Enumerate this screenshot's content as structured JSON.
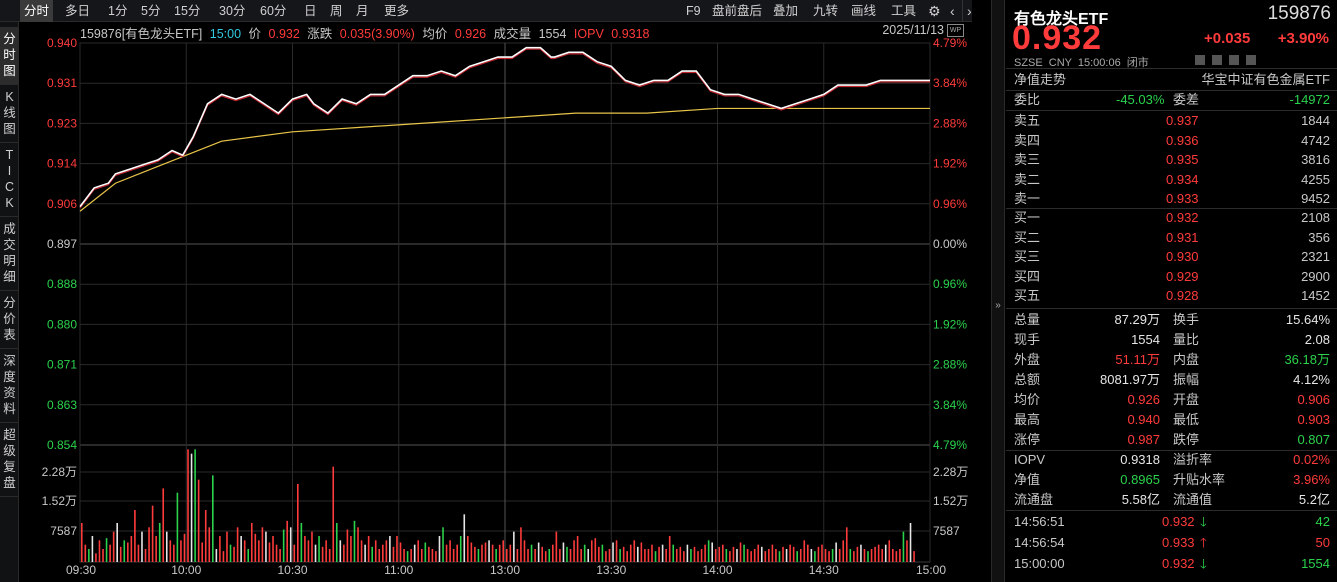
{
  "toolbar": {
    "periods": [
      "分时",
      "多日",
      "1分",
      "5分",
      "15分",
      "30分",
      "60分",
      "日",
      "周",
      "月",
      "更多"
    ],
    "right": [
      "F9",
      "盘前盘后",
      "叠加",
      "九转",
      "画线",
      "工具"
    ],
    "gear": "gear-icon",
    "nav_prev": "‹",
    "nav_next": "›"
  },
  "sidetabs": [
    "分时图",
    "K线图",
    "TICK",
    "成交明细",
    "分价表",
    "深度资料",
    "超级复盘"
  ],
  "info": {
    "code_name": "159876[有色龙头ETF]",
    "time": "15:00",
    "price_label": "价",
    "price": "0.932",
    "change_label": "涨跌",
    "change": "0.035(3.90%)",
    "avg_label": "均价",
    "avg": "0.926",
    "vol_label": "成交量",
    "vol": "1554",
    "iopv_label": "IOPV",
    "iopv": "0.9318",
    "date": "2025/11/13"
  },
  "axes": {
    "price_ticks": [
      "0.940",
      "0.931",
      "0.923",
      "0.914",
      "0.906",
      "0.897",
      "0.888",
      "0.880",
      "0.871",
      "0.863",
      "0.854"
    ],
    "pct_ticks": [
      "4.79%",
      "3.84%",
      "2.88%",
      "1.92%",
      "0.96%",
      "0.00%",
      "0.96%",
      "1.92%",
      "2.88%",
      "3.84%",
      "4.79%"
    ],
    "vol_ticks": [
      "2.28万",
      "1.52万",
      "7587"
    ],
    "vol_ticks_right": [
      "2.28万",
      "1.52万",
      "7587"
    ],
    "time_ticks": [
      "09:30",
      "10:00",
      "10:30",
      "11:00",
      "13:00",
      "13:30",
      "14:00",
      "14:30",
      "15:00"
    ]
  },
  "chart_data": {
    "type": "line",
    "title": "159876[有色龙头ETF]",
    "preclose": 0.897,
    "ylim": [
      0.854,
      0.94
    ],
    "series": [
      {
        "name": "价",
        "points": [
          [
            0,
            0.905
          ],
          [
            4,
            0.909
          ],
          [
            8,
            0.91
          ],
          [
            10,
            0.912
          ],
          [
            14,
            0.913
          ],
          [
            18,
            0.914
          ],
          [
            22,
            0.915
          ],
          [
            26,
            0.917
          ],
          [
            29,
            0.916
          ],
          [
            32,
            0.92
          ],
          [
            36,
            0.927
          ],
          [
            40,
            0.929
          ],
          [
            44,
            0.928
          ],
          [
            48,
            0.929
          ],
          [
            52,
            0.927
          ],
          [
            56,
            0.925
          ],
          [
            60,
            0.928
          ],
          [
            64,
            0.929
          ],
          [
            66,
            0.927
          ],
          [
            70,
            0.925
          ],
          [
            74,
            0.928
          ],
          [
            78,
            0.927
          ],
          [
            82,
            0.929
          ],
          [
            86,
            0.929
          ],
          [
            90,
            0.931
          ],
          [
            94,
            0.933
          ],
          [
            98,
            0.933
          ],
          [
            102,
            0.934
          ],
          [
            106,
            0.933
          ],
          [
            110,
            0.935
          ],
          [
            114,
            0.936
          ],
          [
            118,
            0.937
          ],
          [
            122,
            0.937
          ],
          [
            126,
            0.939
          ],
          [
            130,
            0.939
          ],
          [
            133,
            0.937
          ],
          [
            134,
            0.937
          ],
          [
            138,
            0.938
          ],
          [
            142,
            0.938
          ],
          [
            146,
            0.936
          ],
          [
            150,
            0.935
          ],
          [
            154,
            0.932
          ],
          [
            158,
            0.931
          ],
          [
            162,
            0.932
          ],
          [
            166,
            0.932
          ],
          [
            170,
            0.934
          ],
          [
            174,
            0.934
          ],
          [
            178,
            0.93
          ],
          [
            182,
            0.929
          ],
          [
            186,
            0.929
          ],
          [
            190,
            0.928
          ],
          [
            194,
            0.927
          ],
          [
            198,
            0.926
          ],
          [
            202,
            0.927
          ],
          [
            206,
            0.928
          ],
          [
            210,
            0.929
          ],
          [
            214,
            0.931
          ],
          [
            218,
            0.931
          ],
          [
            222,
            0.931
          ],
          [
            226,
            0.932
          ],
          [
            230,
            0.932
          ],
          [
            234,
            0.932
          ],
          [
            238,
            0.932
          ],
          [
            240,
            0.932
          ]
        ]
      },
      {
        "name": "均价",
        "points": [
          [
            0,
            0.904
          ],
          [
            10,
            0.91
          ],
          [
            20,
            0.913
          ],
          [
            30,
            0.916
          ],
          [
            40,
            0.919
          ],
          [
            60,
            0.921
          ],
          [
            80,
            0.922
          ],
          [
            100,
            0.923
          ],
          [
            120,
            0.924
          ],
          [
            140,
            0.925
          ],
          [
            160,
            0.925
          ],
          [
            180,
            0.926
          ],
          [
            200,
            0.926
          ],
          [
            220,
            0.926
          ],
          [
            240,
            0.926
          ]
        ]
      }
    ],
    "volume": [
      9000,
      4000,
      3000,
      6000,
      2000,
      5000,
      3000,
      5500,
      4000,
      7000,
      9000,
      3500,
      5000,
      4500,
      6000,
      12000,
      4000,
      7000,
      3000,
      8000,
      13000,
      6000,
      9000,
      17000,
      7000,
      5000,
      4000,
      16000,
      5000,
      6500,
      26000,
      25000,
      26000,
      19000,
      4500,
      12000,
      8000,
      20000,
      3000,
      6000,
      2500,
      7000,
      4000,
      3500,
      8000,
      6000,
      5000,
      3000,
      9000,
      6500,
      5000,
      8000,
      7000,
      4500,
      6000,
      4000,
      3000,
      7500,
      9500,
      8000,
      4000,
      18000,
      9000,
      6000,
      5000,
      7000,
      4000,
      6000,
      3500,
      5000,
      3000,
      22000,
      9000,
      5000,
      4000,
      7500,
      6000,
      9500,
      8000,
      5000,
      4000,
      6000,
      3500,
      5000,
      3000,
      4000,
      5000,
      6000,
      3500,
      6000,
      4500,
      3000,
      2500,
      3000,
      4000,
      5000,
      3000,
      4500,
      3500,
      3000,
      2500,
      6000,
      8000,
      4000,
      5000,
      3000,
      4000,
      6000,
      11000,
      6000,
      4500,
      3500,
      3000,
      4000,
      4500,
      5000,
      4000,
      3000,
      4000,
      5000,
      3000,
      4000,
      7000,
      3000,
      8000,
      5000,
      3000,
      4000,
      3000,
      4500,
      3500,
      2500,
      3000,
      4000,
      7000,
      3000,
      4500,
      3500,
      3000,
      5000,
      6000,
      3000,
      4000,
      3000,
      5000,
      5500,
      3500,
      4000,
      2500,
      3000,
      4500,
      5000,
      3000,
      3500,
      2500,
      4000,
      5000,
      3500,
      4500,
      3000,
      3000,
      4000,
      2500,
      3500,
      4000,
      3000,
      6000,
      4000,
      3000,
      3500,
      2500,
      4000,
      3000,
      3500,
      2500,
      3000,
      4000,
      5000,
      4500,
      3000,
      3500,
      4000,
      3000,
      2500,
      3500,
      3000,
      4500,
      4000,
      3000,
      2500,
      3000,
      4000,
      3500,
      2500,
      3000,
      4000,
      3000,
      2500,
      3500,
      3000,
      4000,
      3500,
      2500,
      3000,
      5000,
      4000,
      3000,
      2500,
      3500,
      4000,
      3000,
      2500,
      3000,
      4500,
      3000,
      5000,
      8000,
      3000,
      2500,
      3500,
      4000,
      3000,
      2500,
      3000,
      3500,
      4000,
      3000,
      4000,
      5000,
      3000,
      2500,
      3000,
      7000,
      5000,
      9000,
      2500
    ]
  },
  "panel": {
    "name": "有色龙头ETF",
    "code": "159876",
    "price": "0.932",
    "change": "+0.035",
    "pct": "+3.90%",
    "meta": [
      "SZSE",
      "CNY",
      "15:00:06",
      "闭市"
    ],
    "nav_label": "净值走势",
    "index_name": "华宝中证有色金属ETF",
    "weibi_label": "委比",
    "weibi": "-45.03%",
    "weicha_label": "委差",
    "weicha": "-14972",
    "asks": [
      {
        "label": "卖五",
        "price": "0.937",
        "vol": "1844"
      },
      {
        "label": "卖四",
        "price": "0.936",
        "vol": "4742"
      },
      {
        "label": "卖三",
        "price": "0.935",
        "vol": "3816"
      },
      {
        "label": "卖二",
        "price": "0.934",
        "vol": "4255"
      },
      {
        "label": "卖一",
        "price": "0.933",
        "vol": "9452"
      }
    ],
    "bids": [
      {
        "label": "买一",
        "price": "0.932",
        "vol": "2108"
      },
      {
        "label": "买二",
        "price": "0.931",
        "vol": "356"
      },
      {
        "label": "买三",
        "price": "0.930",
        "vol": "2321"
      },
      {
        "label": "买四",
        "price": "0.929",
        "vol": "2900"
      },
      {
        "label": "买五",
        "price": "0.928",
        "vol": "1452"
      }
    ],
    "stats": [
      {
        "l1": "总量",
        "v1": "87.29万",
        "c1": "white",
        "l2": "换手",
        "v2": "15.64%",
        "c2": "white"
      },
      {
        "l1": "现手",
        "v1": "1554",
        "c1": "white",
        "l2": "量比",
        "v2": "2.08",
        "c2": "white"
      },
      {
        "l1": "外盘",
        "v1": "51.11万",
        "c1": "red",
        "l2": "内盘",
        "v2": "36.18万",
        "c2": "green"
      },
      {
        "l1": "总额",
        "v1": "8081.97万",
        "c1": "white",
        "l2": "振幅",
        "v2": "4.12%",
        "c2": "white"
      },
      {
        "l1": "均价",
        "v1": "0.926",
        "c1": "red",
        "l2": "开盘",
        "v2": "0.906",
        "c2": "red"
      },
      {
        "l1": "最高",
        "v1": "0.940",
        "c1": "red",
        "l2": "最低",
        "v2": "0.903",
        "c2": "red"
      },
      {
        "l1": "涨停",
        "v1": "0.987",
        "c1": "red",
        "l2": "跌停",
        "v2": "0.807",
        "c2": "green"
      }
    ],
    "iopv": [
      {
        "l1": "IOPV",
        "v1": "0.9318",
        "c1": "white",
        "l2": "溢折率",
        "v2": "0.02%",
        "c2": "red"
      },
      {
        "l1": "净值",
        "v1": "0.8965",
        "c1": "green",
        "l2": "升贴水率",
        "v2": "3.96%",
        "c2": "red"
      },
      {
        "l1": "流通盘",
        "v1": "5.58亿",
        "c1": "white",
        "l2": "流通值",
        "v2": "5.2亿",
        "c2": "white"
      }
    ],
    "ticks": [
      {
        "time": "14:56:51",
        "price": "0.932",
        "dir": "down",
        "vol": "42"
      },
      {
        "time": "14:56:54",
        "price": "0.933",
        "dir": "up",
        "vol": "50"
      },
      {
        "time": "15:00:00",
        "price": "0.932",
        "dir": "down",
        "vol": "1554"
      }
    ]
  },
  "colors": {
    "up": "#ff3b3b",
    "down": "#2bd24c",
    "price_line": "#ffffff",
    "avg_line": "#e8c54a",
    "cyan": "#33c8e0"
  }
}
